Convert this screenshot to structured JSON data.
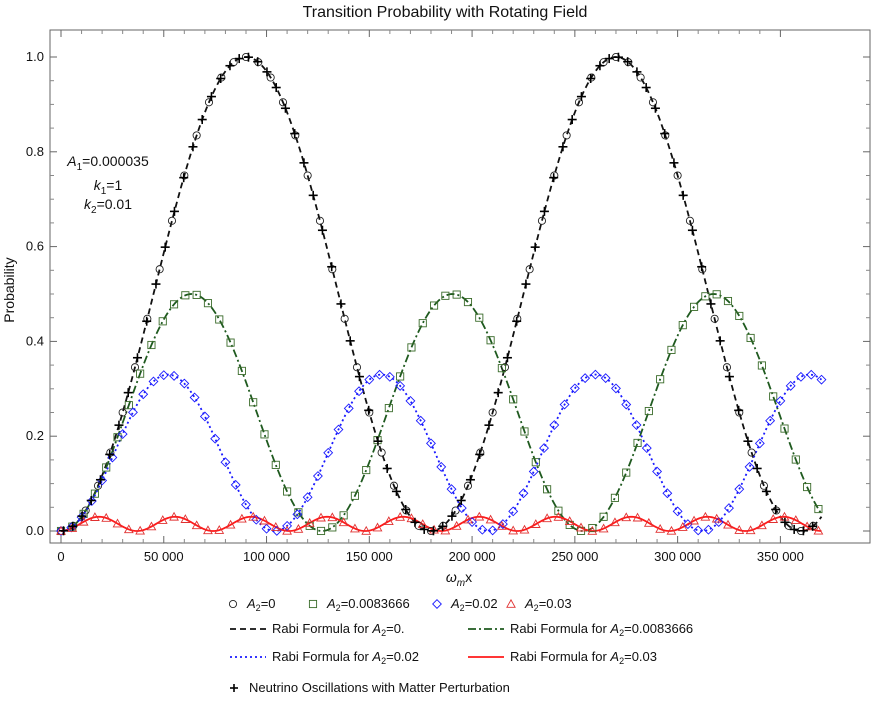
{
  "chart_data": {
    "type": "scatter",
    "title": "Transition Probability with Rotating Field",
    "ylabel": "Probability",
    "xlabel_main": "ω",
    "xlabel_sub": "m",
    "xlabel_tail": "x",
    "xlim": [
      0,
      370000
    ],
    "ylim": [
      0,
      1.0
    ],
    "xticks": [
      0,
      50000,
      100000,
      150000,
      200000,
      250000,
      300000,
      350000
    ],
    "xtick_labels": [
      "0",
      "50 000",
      "100 000",
      "150 000",
      "200 000",
      "250 000",
      "300 000",
      "350 000"
    ],
    "yticks": [
      0,
      0.2,
      0.4,
      0.6,
      0.8,
      1.0
    ],
    "ytick_labels": [
      "0.0",
      "0.2",
      "0.4",
      "0.6",
      "0.8",
      "1.0"
    ],
    "grid": false,
    "parameters": [
      {
        "sym": "A",
        "sub": "1",
        "val": "=0.000035"
      },
      {
        "sym": "k",
        "sub": "1",
        "val": "=1"
      },
      {
        "sym": "k",
        "sub": "2",
        "val": "=0.01"
      }
    ],
    "series": [
      {
        "key": "a0",
        "label_main": "A",
        "label_sub": "2",
        "label_tail": "=0",
        "kind": "markers",
        "marker": "circle",
        "color": "#222222",
        "amplitude": 1.0,
        "period": 180000,
        "step": 6000
      },
      {
        "key": "a00837",
        "label_main": "A",
        "label_sub": "2",
        "label_tail": "=0.0083666",
        "kind": "markers",
        "marker": "square",
        "color": "#3a6b2a",
        "amplitude": 0.5,
        "period": 127000,
        "step": 5500
      },
      {
        "key": "a002",
        "label_main": "A",
        "label_sub": "2",
        "label_tail": "=0.02",
        "kind": "markers",
        "marker": "diamond",
        "color": "#1a1aff",
        "amplitude": 0.33,
        "period": 104000,
        "step": 5000
      },
      {
        "key": "a003",
        "label_main": "A",
        "label_sub": "2",
        "label_tail": "=0.03",
        "kind": "markers",
        "marker": "triangle",
        "color": "#e03030",
        "amplitude": 0.03,
        "period": 37000,
        "step": 5500
      },
      {
        "key": "r0",
        "label_pre": "Rabi Formula for ",
        "label_main": "A",
        "label_sub": "2",
        "label_tail": "=0.",
        "kind": "line",
        "dash": "6,4",
        "color": "#111111",
        "amplitude": 1.0,
        "period": 180000
      },
      {
        "key": "r00837",
        "label_pre": "Rabi Formula for ",
        "label_main": "A",
        "label_sub": "2",
        "label_tail": "=0.0083666",
        "kind": "line",
        "dash": "8,3,2,3",
        "color": "#1f5a1f",
        "amplitude": 0.5,
        "period": 127000
      },
      {
        "key": "r002",
        "label_pre": "Rabi Formula for ",
        "label_main": "A",
        "label_sub": "2",
        "label_tail": "=0.02",
        "kind": "line",
        "dash": "2,3",
        "color": "#1a1aff",
        "amplitude": 0.33,
        "period": 104000
      },
      {
        "key": "r003",
        "label_pre": "Rabi Formula for ",
        "label_main": "A",
        "label_sub": "2",
        "label_tail": "=0.03",
        "kind": "line",
        "dash": "",
        "color": "#ff1a1a",
        "amplitude": 0.03,
        "period": 37000
      },
      {
        "key": "nu",
        "label_plain": "Neutrino Oscillations with Matter Perturbation",
        "kind": "markers",
        "marker": "plus",
        "color": "#000000",
        "amplitude": 1.0,
        "period": 180000,
        "step": 4500
      }
    ]
  }
}
